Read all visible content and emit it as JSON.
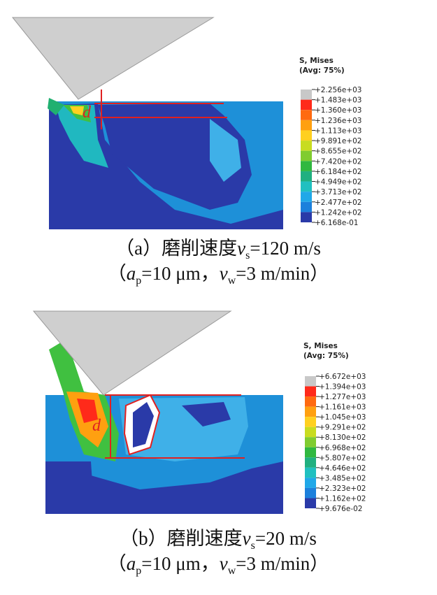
{
  "panels": [
    {
      "dimension_label": "d",
      "legend": {
        "title": "S, Mises",
        "subtitle": "(Avg: 75%)",
        "values": [
          "+2.256e+03",
          "+1.483e+03",
          "+1.360e+03",
          "+1.236e+03",
          "+1.113e+03",
          "+9.891e+02",
          "+8.655e+02",
          "+7.420e+02",
          "+6.184e+02",
          "+4.949e+02",
          "+3.713e+02",
          "+2.477e+02",
          "+1.242e+02",
          "+6.168e-01"
        ]
      },
      "caption": {
        "label": "（a）磨削速度",
        "var": "v",
        "sub": "s",
        "value": "=120 m/s"
      },
      "conditions": {
        "open": "（",
        "a_var": "a",
        "a_sub": "p",
        "a_value": "=10 μm，",
        "v_var": "v",
        "v_sub": "w",
        "v_value": "=3 m/min）"
      }
    },
    {
      "dimension_label": "d",
      "legend": {
        "title": "S, Mises",
        "subtitle": "(Avg: 75%)",
        "values": [
          "+6.672e+03",
          "+1.394e+03",
          "+1.277e+03",
          "+1.161e+03",
          "+1.045e+03",
          "+9.291e+02",
          "+8.130e+02",
          "+6.968e+02",
          "+5.807e+02",
          "+4.646e+02",
          "+3.485e+02",
          "+2.323e+02",
          "+1.162e+02",
          "+9.676e-02"
        ]
      },
      "caption": {
        "label": "（b）磨削速度",
        "var": "v",
        "sub": "s",
        "value": "=20 m/s"
      },
      "conditions": {
        "open": "（",
        "a_var": "a",
        "a_sub": "p",
        "a_value": "=10 μm，",
        "v_var": "v",
        "v_sub": "w",
        "v_value": "=3 m/min）"
      }
    }
  ]
}
